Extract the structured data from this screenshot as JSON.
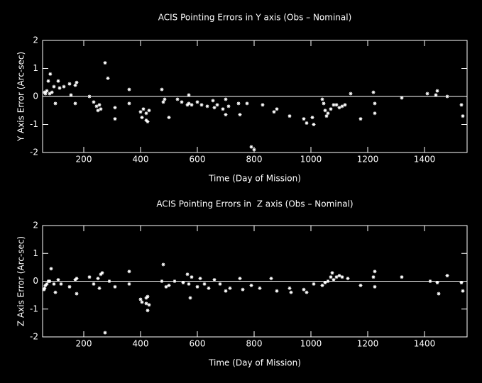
{
  "chart_data": [
    {
      "type": "scatter",
      "title": "ACIS Pointing Errors in Y axis (Obs – Nominal)",
      "xlabel": "Time (Day of Mission)",
      "ylabel": "Y Axis Error (Arc-sec)",
      "color": "#ffffff",
      "xlim": [
        55,
        1550
      ],
      "ylim": [
        -2,
        2
      ],
      "xticks": [
        200,
        400,
        600,
        800,
        1000,
        1200,
        1400
      ],
      "yticks": [
        -2,
        -1,
        0,
        1,
        2
      ],
      "hline": 0,
      "x": [
        62,
        65,
        70,
        75,
        80,
        82,
        88,
        95,
        100,
        110,
        115,
        130,
        150,
        155,
        170,
        170,
        175,
        220,
        235,
        245,
        250,
        255,
        260,
        275,
        285,
        310,
        310,
        360,
        360,
        400,
        405,
        410,
        420,
        420,
        425,
        430,
        475,
        480,
        485,
        500,
        530,
        545,
        565,
        570,
        570,
        580,
        600,
        615,
        635,
        655,
        660,
        670,
        690,
        700,
        700,
        710,
        745,
        750,
        775,
        790,
        800,
        830,
        870,
        880,
        925,
        975,
        985,
        1005,
        1010,
        1040,
        1045,
        1050,
        1055,
        1060,
        1070,
        1080,
        1090,
        1100,
        1110,
        1120,
        1140,
        1175,
        1220,
        1225,
        1225,
        1320,
        1410,
        1440,
        1445,
        1480,
        1530,
        1535
      ],
      "values": [
        0.15,
        0.1,
        0.2,
        0.55,
        0.1,
        0.8,
        0.15,
        0.35,
        -0.25,
        0.55,
        0.3,
        0.35,
        0.45,
        0.05,
        0.4,
        -0.25,
        0.5,
        0.0,
        -0.2,
        -0.35,
        -0.5,
        -0.3,
        -0.45,
        1.2,
        0.65,
        -0.4,
        -0.8,
        0.25,
        -0.25,
        -0.55,
        -0.75,
        -0.45,
        -0.6,
        -0.85,
        -0.9,
        -0.5,
        0.25,
        -0.2,
        -0.1,
        -0.75,
        -0.1,
        -0.2,
        -0.3,
        0.05,
        -0.25,
        -0.3,
        -0.2,
        -0.3,
        -0.35,
        -0.15,
        -0.4,
        -0.3,
        -0.45,
        -0.1,
        -0.65,
        -0.35,
        -0.25,
        -0.65,
        -0.25,
        -1.8,
        -1.9,
        -0.3,
        -0.55,
        -0.45,
        -0.7,
        -0.8,
        -0.95,
        -0.75,
        -1.0,
        -0.1,
        -0.25,
        -0.5,
        -0.7,
        -0.6,
        -0.45,
        -0.3,
        -0.3,
        -0.4,
        -0.35,
        -0.3,
        0.1,
        -0.8,
        0.15,
        -0.25,
        -0.6,
        -0.05,
        0.1,
        0.05,
        0.2,
        0.0,
        -0.3,
        -0.7
      ]
    },
    {
      "type": "scatter",
      "title": "ACIS Pointing Errors in  Z axis (Obs – Nominal)",
      "xlabel": "Time (Day of Mission)",
      "ylabel": "Z Axis Error (Arc-sec)",
      "color": "#ffffff",
      "xlim": [
        55,
        1550
      ],
      "ylim": [
        -2,
        2
      ],
      "xticks": [
        200,
        400,
        600,
        800,
        1000,
        1200,
        1400
      ],
      "yticks": [
        -2,
        -1,
        0,
        1,
        2
      ],
      "hline": 0,
      "x": [
        60,
        62,
        65,
        70,
        75,
        80,
        85,
        95,
        100,
        110,
        120,
        150,
        170,
        175,
        175,
        220,
        235,
        250,
        255,
        260,
        265,
        275,
        290,
        310,
        360,
        360,
        400,
        405,
        420,
        420,
        425,
        425,
        430,
        475,
        480,
        490,
        500,
        520,
        550,
        565,
        570,
        575,
        580,
        600,
        610,
        625,
        640,
        660,
        680,
        700,
        715,
        750,
        760,
        790,
        820,
        860,
        880,
        925,
        930,
        975,
        985,
        1010,
        1040,
        1050,
        1060,
        1070,
        1075,
        1080,
        1090,
        1100,
        1110,
        1130,
        1175,
        1220,
        1225,
        1225,
        1320,
        1420,
        1445,
        1450,
        1480,
        1530,
        1535
      ],
      "values": [
        -0.3,
        -0.25,
        -0.15,
        -0.1,
        0.0,
        0.0,
        0.45,
        -0.1,
        -0.4,
        0.05,
        -0.1,
        -0.2,
        0.05,
        -0.45,
        0.1,
        0.15,
        -0.1,
        0.1,
        -0.25,
        0.25,
        0.3,
        -1.85,
        0.0,
        -0.2,
        0.35,
        -0.1,
        -0.65,
        -0.75,
        -0.6,
        -0.8,
        -1.05,
        -0.55,
        -0.85,
        0.0,
        0.6,
        -0.2,
        -0.15,
        0.0,
        -0.05,
        0.25,
        -0.1,
        -0.6,
        0.15,
        -0.2,
        0.1,
        -0.1,
        -0.25,
        0.05,
        -0.1,
        -0.35,
        -0.25,
        0.1,
        -0.3,
        -0.15,
        -0.25,
        0.1,
        -0.35,
        -0.25,
        -0.4,
        -0.3,
        -0.4,
        -0.1,
        -0.15,
        -0.05,
        0.0,
        0.15,
        0.3,
        0.05,
        0.15,
        0.2,
        0.15,
        0.1,
        -0.15,
        0.15,
        0.35,
        -0.2,
        0.15,
        0.0,
        -0.05,
        -0.45,
        0.2,
        -0.05,
        -0.35
      ]
    }
  ]
}
